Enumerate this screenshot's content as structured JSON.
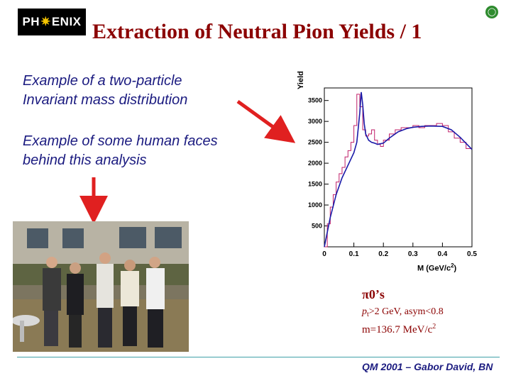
{
  "header": {
    "logo_text_left": "PH",
    "logo_star": "✷",
    "logo_text_right": "ENIX",
    "corner_icon": "phenix-circle-icon",
    "title": "Extraction of Neutral Pion Yields / 1"
  },
  "captions": {
    "mass_distribution_line1": "Example of a two-particle",
    "mass_distribution_line2": "Invariant mass distribution",
    "faces_line1": "Example of some human faces",
    "faces_line2": "behind this analysis"
  },
  "annotation": {
    "pi_label": "π0’s",
    "cut_prefix": "p",
    "cut_sub": "t",
    "cut_rest": ">2 GeV, asym<0.8",
    "mass_text": "m=136.7 MeV/c",
    "mass_sup": "2"
  },
  "footer": {
    "text": "QM 2001 – Gabor David, BN"
  },
  "colors": {
    "title": "#8b0000",
    "caption": "#1b1b80",
    "arrow": "#e02020",
    "histogram": "#c0206a",
    "fit": "#1a1aa8"
  },
  "chart_data": {
    "type": "line",
    "xlabel": "M (GeV/c",
    "xlabel_sup": "2",
    "xlabel_close": ")",
    "ylabel": "Yield",
    "xlim": [
      0,
      0.5
    ],
    "ylim": [
      0,
      3800
    ],
    "x_ticks": [
      "0",
      "0.1",
      "0.2",
      "0.3",
      "0.4",
      "0.5"
    ],
    "y_ticks": [
      "500",
      "1000",
      "1500",
      "2000",
      "2500",
      "3000",
      "3500"
    ],
    "series": [
      {
        "kind": "histogram",
        "x": [
          0.01,
          0.02,
          0.03,
          0.04,
          0.05,
          0.06,
          0.07,
          0.08,
          0.09,
          0.1,
          0.11,
          0.12,
          0.13,
          0.14,
          0.15,
          0.16,
          0.17,
          0.18,
          0.19,
          0.2,
          0.22,
          0.24,
          0.26,
          0.28,
          0.3,
          0.32,
          0.34,
          0.36,
          0.38,
          0.4,
          0.42,
          0.44,
          0.46,
          0.48,
          0.5
        ],
        "y": [
          0,
          550,
          950,
          1250,
          1550,
          1750,
          1900,
          2150,
          2300,
          2500,
          2900,
          3650,
          3350,
          2800,
          2650,
          2700,
          2800,
          2550,
          2450,
          2400,
          2550,
          2700,
          2800,
          2850,
          2850,
          2900,
          2850,
          2900,
          2900,
          2950,
          2900,
          2750,
          2600,
          2500,
          2350
        ]
      },
      {
        "kind": "fit",
        "x": [
          0.0,
          0.02,
          0.04,
          0.06,
          0.08,
          0.1,
          0.11,
          0.12,
          0.125,
          0.13,
          0.135,
          0.14,
          0.15,
          0.16,
          0.17,
          0.18,
          0.2,
          0.22,
          0.25,
          0.28,
          0.3,
          0.33,
          0.36,
          0.4,
          0.43,
          0.46,
          0.5
        ],
        "y": [
          0,
          700,
          1250,
          1650,
          1950,
          2250,
          2500,
          3200,
          3700,
          3400,
          2950,
          2700,
          2550,
          2500,
          2480,
          2450,
          2480,
          2600,
          2750,
          2830,
          2860,
          2880,
          2890,
          2880,
          2800,
          2620,
          2330
        ]
      }
    ]
  }
}
